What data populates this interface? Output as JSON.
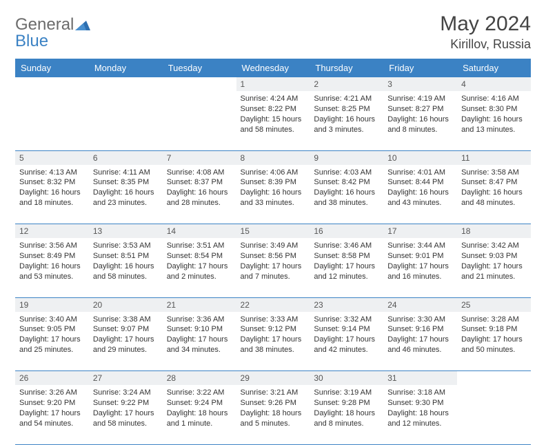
{
  "brand": {
    "part1": "General",
    "part2": "Blue"
  },
  "title": "May 2024",
  "location": "Kirillov, Russia",
  "colors": {
    "header_bg": "#3b82c4",
    "header_fg": "#ffffff",
    "daynum_bg": "#eef0f2",
    "border": "#3b82c4",
    "text": "#333333",
    "logo_gray": "#6b6b6b",
    "logo_blue": "#3b82c4",
    "page_bg": "#ffffff"
  },
  "typography": {
    "title_fontsize": 30,
    "location_fontsize": 18,
    "weekday_fontsize": 13,
    "daynum_fontsize": 12,
    "cell_fontsize": 11
  },
  "weekdays": [
    "Sunday",
    "Monday",
    "Tuesday",
    "Wednesday",
    "Thursday",
    "Friday",
    "Saturday"
  ],
  "weeks": [
    {
      "nums": [
        "",
        "",
        "",
        "1",
        "2",
        "3",
        "4"
      ],
      "cells": [
        null,
        null,
        null,
        {
          "sunrise": "Sunrise: 4:24 AM",
          "sunset": "Sunset: 8:22 PM",
          "day1": "Daylight: 15 hours",
          "day2": "and 58 minutes."
        },
        {
          "sunrise": "Sunrise: 4:21 AM",
          "sunset": "Sunset: 8:25 PM",
          "day1": "Daylight: 16 hours",
          "day2": "and 3 minutes."
        },
        {
          "sunrise": "Sunrise: 4:19 AM",
          "sunset": "Sunset: 8:27 PM",
          "day1": "Daylight: 16 hours",
          "day2": "and 8 minutes."
        },
        {
          "sunrise": "Sunrise: 4:16 AM",
          "sunset": "Sunset: 8:30 PM",
          "day1": "Daylight: 16 hours",
          "day2": "and 13 minutes."
        }
      ]
    },
    {
      "nums": [
        "5",
        "6",
        "7",
        "8",
        "9",
        "10",
        "11"
      ],
      "cells": [
        {
          "sunrise": "Sunrise: 4:13 AM",
          "sunset": "Sunset: 8:32 PM",
          "day1": "Daylight: 16 hours",
          "day2": "and 18 minutes."
        },
        {
          "sunrise": "Sunrise: 4:11 AM",
          "sunset": "Sunset: 8:35 PM",
          "day1": "Daylight: 16 hours",
          "day2": "and 23 minutes."
        },
        {
          "sunrise": "Sunrise: 4:08 AM",
          "sunset": "Sunset: 8:37 PM",
          "day1": "Daylight: 16 hours",
          "day2": "and 28 minutes."
        },
        {
          "sunrise": "Sunrise: 4:06 AM",
          "sunset": "Sunset: 8:39 PM",
          "day1": "Daylight: 16 hours",
          "day2": "and 33 minutes."
        },
        {
          "sunrise": "Sunrise: 4:03 AM",
          "sunset": "Sunset: 8:42 PM",
          "day1": "Daylight: 16 hours",
          "day2": "and 38 minutes."
        },
        {
          "sunrise": "Sunrise: 4:01 AM",
          "sunset": "Sunset: 8:44 PM",
          "day1": "Daylight: 16 hours",
          "day2": "and 43 minutes."
        },
        {
          "sunrise": "Sunrise: 3:58 AM",
          "sunset": "Sunset: 8:47 PM",
          "day1": "Daylight: 16 hours",
          "day2": "and 48 minutes."
        }
      ]
    },
    {
      "nums": [
        "12",
        "13",
        "14",
        "15",
        "16",
        "17",
        "18"
      ],
      "cells": [
        {
          "sunrise": "Sunrise: 3:56 AM",
          "sunset": "Sunset: 8:49 PM",
          "day1": "Daylight: 16 hours",
          "day2": "and 53 minutes."
        },
        {
          "sunrise": "Sunrise: 3:53 AM",
          "sunset": "Sunset: 8:51 PM",
          "day1": "Daylight: 16 hours",
          "day2": "and 58 minutes."
        },
        {
          "sunrise": "Sunrise: 3:51 AM",
          "sunset": "Sunset: 8:54 PM",
          "day1": "Daylight: 17 hours",
          "day2": "and 2 minutes."
        },
        {
          "sunrise": "Sunrise: 3:49 AM",
          "sunset": "Sunset: 8:56 PM",
          "day1": "Daylight: 17 hours",
          "day2": "and 7 minutes."
        },
        {
          "sunrise": "Sunrise: 3:46 AM",
          "sunset": "Sunset: 8:58 PM",
          "day1": "Daylight: 17 hours",
          "day2": "and 12 minutes."
        },
        {
          "sunrise": "Sunrise: 3:44 AM",
          "sunset": "Sunset: 9:01 PM",
          "day1": "Daylight: 17 hours",
          "day2": "and 16 minutes."
        },
        {
          "sunrise": "Sunrise: 3:42 AM",
          "sunset": "Sunset: 9:03 PM",
          "day1": "Daylight: 17 hours",
          "day2": "and 21 minutes."
        }
      ]
    },
    {
      "nums": [
        "19",
        "20",
        "21",
        "22",
        "23",
        "24",
        "25"
      ],
      "cells": [
        {
          "sunrise": "Sunrise: 3:40 AM",
          "sunset": "Sunset: 9:05 PM",
          "day1": "Daylight: 17 hours",
          "day2": "and 25 minutes."
        },
        {
          "sunrise": "Sunrise: 3:38 AM",
          "sunset": "Sunset: 9:07 PM",
          "day1": "Daylight: 17 hours",
          "day2": "and 29 minutes."
        },
        {
          "sunrise": "Sunrise: 3:36 AM",
          "sunset": "Sunset: 9:10 PM",
          "day1": "Daylight: 17 hours",
          "day2": "and 34 minutes."
        },
        {
          "sunrise": "Sunrise: 3:33 AM",
          "sunset": "Sunset: 9:12 PM",
          "day1": "Daylight: 17 hours",
          "day2": "and 38 minutes."
        },
        {
          "sunrise": "Sunrise: 3:32 AM",
          "sunset": "Sunset: 9:14 PM",
          "day1": "Daylight: 17 hours",
          "day2": "and 42 minutes."
        },
        {
          "sunrise": "Sunrise: 3:30 AM",
          "sunset": "Sunset: 9:16 PM",
          "day1": "Daylight: 17 hours",
          "day2": "and 46 minutes."
        },
        {
          "sunrise": "Sunrise: 3:28 AM",
          "sunset": "Sunset: 9:18 PM",
          "day1": "Daylight: 17 hours",
          "day2": "and 50 minutes."
        }
      ]
    },
    {
      "nums": [
        "26",
        "27",
        "28",
        "29",
        "30",
        "31",
        ""
      ],
      "cells": [
        {
          "sunrise": "Sunrise: 3:26 AM",
          "sunset": "Sunset: 9:20 PM",
          "day1": "Daylight: 17 hours",
          "day2": "and 54 minutes."
        },
        {
          "sunrise": "Sunrise: 3:24 AM",
          "sunset": "Sunset: 9:22 PM",
          "day1": "Daylight: 17 hours",
          "day2": "and 58 minutes."
        },
        {
          "sunrise": "Sunrise: 3:22 AM",
          "sunset": "Sunset: 9:24 PM",
          "day1": "Daylight: 18 hours",
          "day2": "and 1 minute."
        },
        {
          "sunrise": "Sunrise: 3:21 AM",
          "sunset": "Sunset: 9:26 PM",
          "day1": "Daylight: 18 hours",
          "day2": "and 5 minutes."
        },
        {
          "sunrise": "Sunrise: 3:19 AM",
          "sunset": "Sunset: 9:28 PM",
          "day1": "Daylight: 18 hours",
          "day2": "and 8 minutes."
        },
        {
          "sunrise": "Sunrise: 3:18 AM",
          "sunset": "Sunset: 9:30 PM",
          "day1": "Daylight: 18 hours",
          "day2": "and 12 minutes."
        },
        null
      ]
    }
  ]
}
